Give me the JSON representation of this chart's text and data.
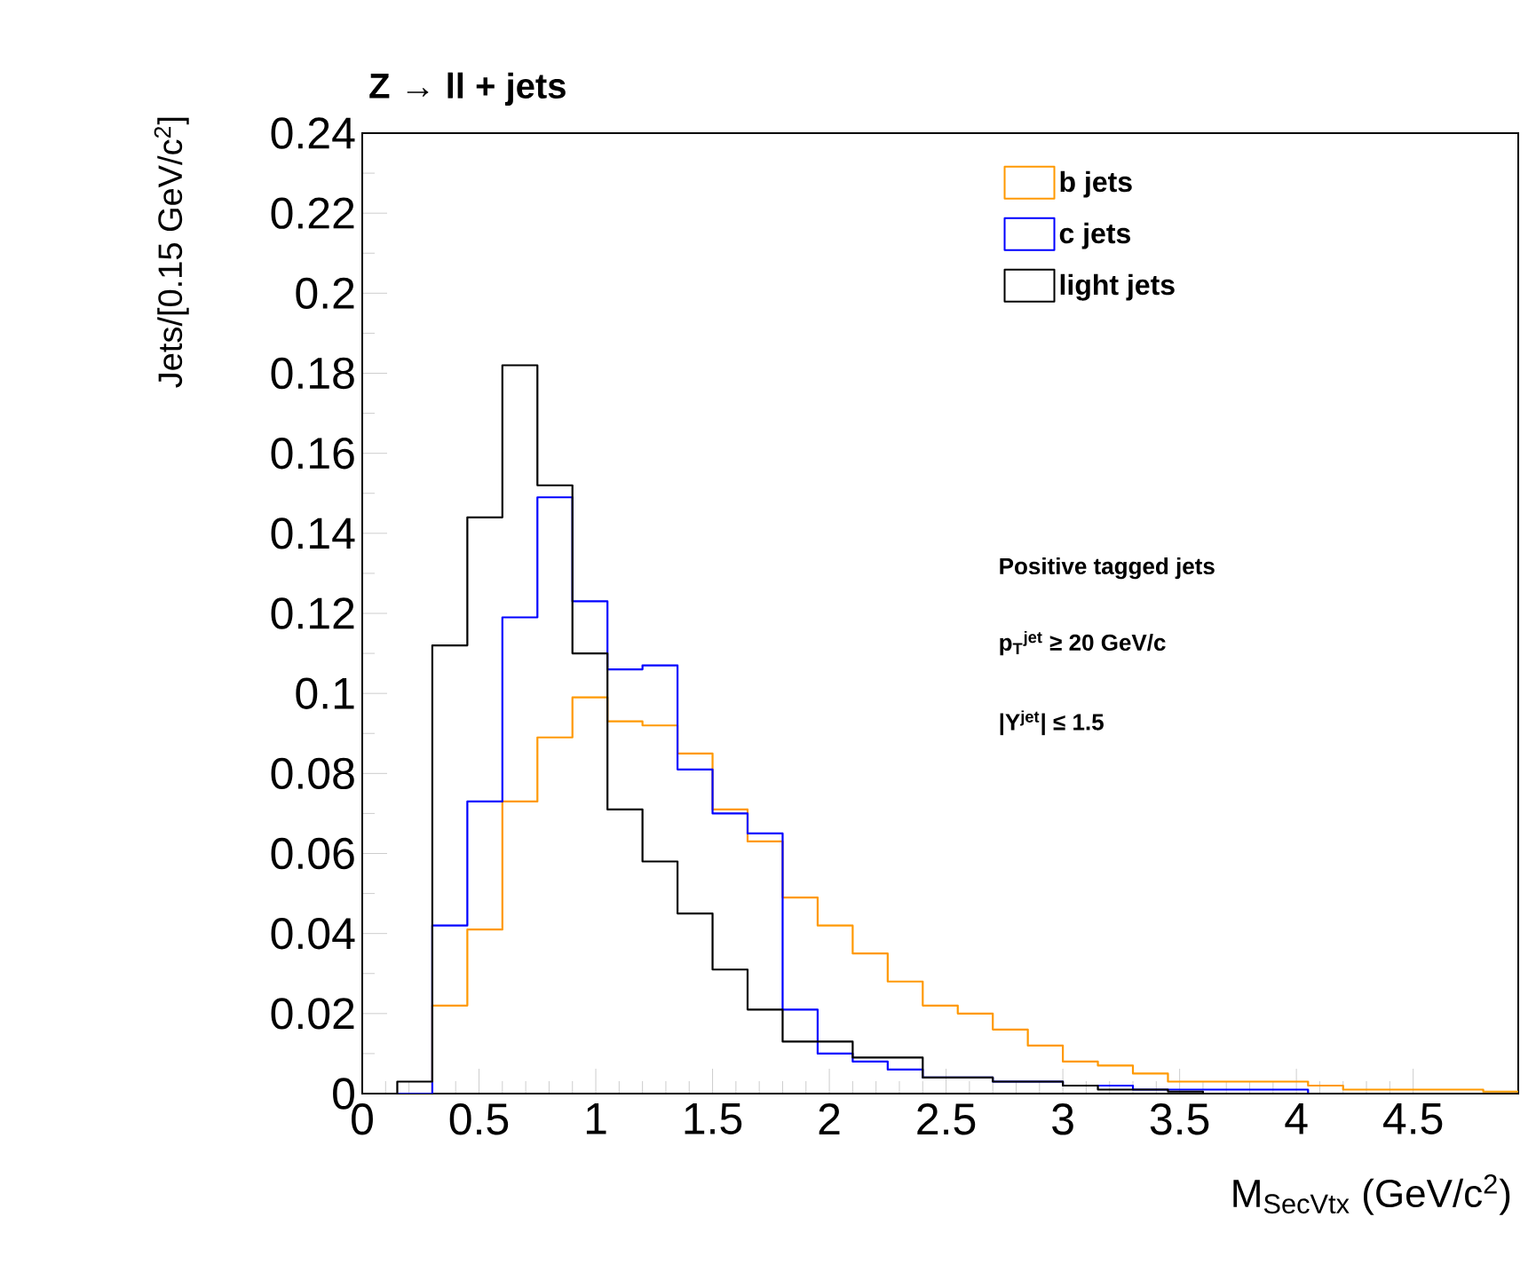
{
  "chart_data": {
    "type": "histogram",
    "title": "Z → ll + jets",
    "xlabel": "M$_{SecVtx}$ (GeV/c$^{2}$)",
    "ylabel": "Jets/[0.15 GeV/c$^{2}$]",
    "annotations": [
      "Positive tagged jets",
      "p$_{T}$$^{jet}$ ≥ 20 GeV/c",
      "|Y$^{jet}$| ≤ 1.5"
    ],
    "bins": [
      0,
      0.15,
      0.3,
      0.45,
      0.6,
      0.75,
      0.9,
      1.05,
      1.2,
      1.35,
      1.5,
      1.65,
      1.8,
      1.95,
      2.1,
      2.25,
      2.4,
      2.55,
      2.7,
      2.85,
      3.0,
      3.15,
      3.3,
      3.45,
      3.6,
      3.75,
      3.9,
      4.05,
      4.2,
      4.35,
      4.5,
      4.65,
      4.8,
      4.95
    ],
    "series": [
      {
        "name": "b jets",
        "color": "#ff9900",
        "values": [
          0,
          0,
          0.022,
          0.041,
          0.073,
          0.089,
          0.099,
          0.093,
          0.092,
          0.085,
          0.071,
          0.063,
          0.049,
          0.042,
          0.035,
          0.028,
          0.022,
          0.02,
          0.016,
          0.012,
          0.008,
          0.007,
          0.005,
          0.003,
          0.003,
          0.003,
          0.003,
          0.002,
          0.001,
          0.001,
          0.001,
          0.001,
          0.0005
        ]
      },
      {
        "name": "c jets",
        "color": "#0000ff",
        "values": [
          0,
          0,
          0.042,
          0.073,
          0.119,
          0.149,
          0.123,
          0.106,
          0.107,
          0.081,
          0.07,
          0.065,
          0.021,
          0.01,
          0.008,
          0.006,
          0.004,
          0.004,
          0.003,
          0.003,
          0.002,
          0.002,
          0.001,
          0.001,
          0.001,
          0.001,
          0.001,
          0,
          0,
          0,
          0,
          0,
          0
        ]
      },
      {
        "name": "light jets",
        "color": "#000000",
        "values": [
          0,
          0.003,
          0.112,
          0.144,
          0.182,
          0.152,
          0.11,
          0.071,
          0.058,
          0.045,
          0.031,
          0.021,
          0.013,
          0.013,
          0.009,
          0.009,
          0.004,
          0.004,
          0.003,
          0.003,
          0.002,
          0.001,
          0.001,
          0.0005,
          0,
          0,
          0,
          0,
          0,
          0,
          0,
          0,
          0
        ]
      }
    ],
    "xlim": [
      0,
      4.95
    ],
    "ylim": [
      0,
      0.24
    ],
    "xticks": [
      0,
      0.5,
      1,
      1.5,
      2,
      2.5,
      3,
      3.5,
      4,
      4.5
    ],
    "yticks": [
      0,
      0.02,
      0.04,
      0.06,
      0.08,
      0.1,
      0.12,
      0.14,
      0.16,
      0.18,
      0.2,
      0.22,
      0.24
    ],
    "legend": "top right",
    "grid": false
  }
}
